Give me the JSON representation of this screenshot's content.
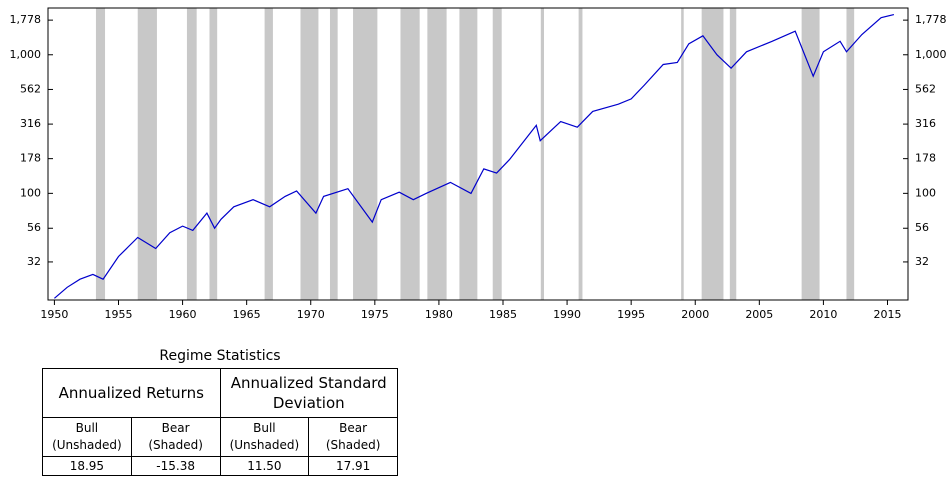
{
  "chart_data": {
    "type": "line",
    "log_scale": true,
    "color": "#0000cc",
    "shade_color": "#c8c8c8",
    "x": [
      1950,
      1951,
      1952,
      1953,
      1953.8,
      1955,
      1956.5,
      1957.9,
      1959,
      1960,
      1960.8,
      1961.9,
      1962.5,
      1963,
      1964,
      1965.5,
      1966.8,
      1968,
      1968.9,
      1970.4,
      1971,
      1972.9,
      1974.8,
      1975.5,
      1976.9,
      1978,
      1979,
      1980.9,
      1982.5,
      1983.5,
      1984.5,
      1985.5,
      1987.6,
      1987.9,
      1989.5,
      1990.8,
      1992,
      1994,
      1995,
      1996,
      1997.5,
      1998.6,
      1999.5,
      2000.6,
      2001.7,
      2002.8,
      2004,
      2006,
      2007.8,
      2009.2,
      2010,
      2011.3,
      2011.8,
      2013,
      2014.5,
      2015.5
    ],
    "values": [
      17.5,
      21,
      24,
      26,
      24,
      35,
      48,
      40,
      52,
      58,
      54,
      72,
      56,
      65,
      80,
      90,
      80,
      95,
      104,
      72,
      95,
      108,
      62,
      90,
      102,
      90,
      100,
      120,
      100,
      150,
      140,
      175,
      310,
      240,
      330,
      300,
      390,
      440,
      480,
      600,
      850,
      880,
      1200,
      1370,
      1000,
      800,
      1050,
      1250,
      1480,
      700,
      1050,
      1250,
      1050,
      1400,
      1850,
      1950
    ],
    "shaded": [
      [
        1953.24,
        1953.95
      ],
      [
        1956.5,
        1958.0
      ],
      [
        1960.34,
        1961.1
      ],
      [
        1962.1,
        1962.7
      ],
      [
        1966.4,
        1967.05
      ],
      [
        1969.2,
        1970.6
      ],
      [
        1971.5,
        1972.1
      ],
      [
        1973.3,
        1975.2
      ],
      [
        1977.0,
        1978.5
      ],
      [
        1979.1,
        1980.6
      ],
      [
        1981.6,
        1983.0
      ],
      [
        1984.2,
        1984.9
      ],
      [
        1987.95,
        1988.2
      ],
      [
        1990.9,
        1991.2
      ],
      [
        1998.9,
        1999.1
      ],
      [
        2000.5,
        2002.2
      ],
      [
        2002.7,
        2003.2
      ],
      [
        2008.3,
        2009.7
      ],
      [
        2011.8,
        2012.4
      ]
    ],
    "xlim": [
      1949.5,
      2016.6
    ],
    "xticks": [
      1950,
      1955,
      1960,
      1965,
      1970,
      1975,
      1980,
      1985,
      1990,
      1995,
      2000,
      2005,
      2010,
      2015
    ],
    "ylim": [
      17,
      2175
    ],
    "yticks": [
      32,
      56,
      100,
      178,
      316,
      562,
      {
        "value": 1000,
        "label": "1,000"
      },
      {
        "value": 1778,
        "label": "1,778"
      }
    ]
  },
  "table": {
    "title": "Regime Statistics",
    "groups": [
      "Annualized Returns",
      "Annualized Standard Deviation"
    ],
    "columns": [
      "Bull (Unshaded)",
      "Bear (Shaded)",
      "Bull (Unshaded)",
      "Bear (Shaded)"
    ],
    "values": [
      "18.95",
      "-15.38",
      "11.50",
      "17.91"
    ]
  }
}
